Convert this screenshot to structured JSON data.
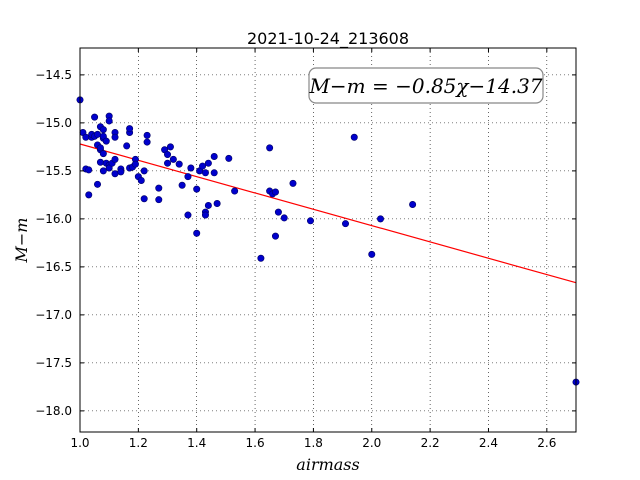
{
  "chart_data": {
    "type": "scatter",
    "title": "2021-10-24_213608",
    "xlabel": "airmass",
    "ylabel": "M−m",
    "xlim": [
      1.0,
      2.7
    ],
    "ylim": [
      -18.22,
      -14.22
    ],
    "x_ticks": [
      1.0,
      1.2,
      1.4,
      1.6,
      1.8,
      2.0,
      2.2,
      2.4,
      2.6
    ],
    "y_ticks": [
      -14.5,
      -15.0,
      -15.5,
      -16.0,
      -16.5,
      -17.0,
      -17.5,
      -18.0
    ],
    "x_tick_labels": [
      "1.0",
      "1.2",
      "1.4",
      "1.6",
      "1.8",
      "2.0",
      "2.2",
      "2.4",
      "2.6"
    ],
    "y_tick_labels": [
      "−14.5",
      "−15.0",
      "−15.5",
      "−16.0",
      "−16.5",
      "−17.0",
      "−17.5",
      "−18.0"
    ],
    "grid": true,
    "annotation": "M−m = −0.85χ−14.37",
    "fit": {
      "slope": -0.85,
      "intercept": -14.37,
      "color": "#ff0000"
    },
    "point_color": "#0000cc",
    "points": [
      [
        1.0,
        -14.76
      ],
      [
        1.01,
        -15.1
      ],
      [
        1.02,
        -15.15
      ],
      [
        1.02,
        -15.48
      ],
      [
        1.03,
        -15.75
      ],
      [
        1.03,
        -15.49
      ],
      [
        1.04,
        -15.15
      ],
      [
        1.04,
        -15.12
      ],
      [
        1.05,
        -14.94
      ],
      [
        1.05,
        -15.14
      ],
      [
        1.06,
        -15.23
      ],
      [
        1.06,
        -15.12
      ],
      [
        1.06,
        -15.64
      ],
      [
        1.07,
        -15.28
      ],
      [
        1.07,
        -15.26
      ],
      [
        1.07,
        -15.04
      ],
      [
        1.07,
        -15.41
      ],
      [
        1.08,
        -15.16
      ],
      [
        1.08,
        -15.14
      ],
      [
        1.08,
        -15.07
      ],
      [
        1.08,
        -15.32
      ],
      [
        1.08,
        -15.5
      ],
      [
        1.09,
        -15.19
      ],
      [
        1.09,
        -15.42
      ],
      [
        1.1,
        -14.93
      ],
      [
        1.1,
        -14.98
      ],
      [
        1.1,
        -15.44
      ],
      [
        1.1,
        -15.47
      ],
      [
        1.11,
        -15.42
      ],
      [
        1.12,
        -15.1
      ],
      [
        1.12,
        -15.15
      ],
      [
        1.12,
        -15.38
      ],
      [
        1.12,
        -15.53
      ],
      [
        1.14,
        -15.48
      ],
      [
        1.14,
        -15.51
      ],
      [
        1.16,
        -15.24
      ],
      [
        1.17,
        -15.1
      ],
      [
        1.17,
        -15.06
      ],
      [
        1.17,
        -15.47
      ],
      [
        1.18,
        -15.46
      ],
      [
        1.19,
        -15.38
      ],
      [
        1.19,
        -15.43
      ],
      [
        1.2,
        -15.56
      ],
      [
        1.21,
        -15.6
      ],
      [
        1.22,
        -15.5
      ],
      [
        1.22,
        -15.79
      ],
      [
        1.23,
        -15.13
      ],
      [
        1.23,
        -15.2
      ],
      [
        1.27,
        -15.68
      ],
      [
        1.27,
        -15.8
      ],
      [
        1.29,
        -15.28
      ],
      [
        1.3,
        -15.42
      ],
      [
        1.3,
        -15.33
      ],
      [
        1.31,
        -15.25
      ],
      [
        1.32,
        -15.38
      ],
      [
        1.34,
        -15.43
      ],
      [
        1.35,
        -15.65
      ],
      [
        1.37,
        -15.56
      ],
      [
        1.37,
        -15.96
      ],
      [
        1.38,
        -15.47
      ],
      [
        1.4,
        -15.69
      ],
      [
        1.4,
        -16.15
      ],
      [
        1.41,
        -15.5
      ],
      [
        1.42,
        -15.45
      ],
      [
        1.43,
        -15.52
      ],
      [
        1.43,
        -15.93
      ],
      [
        1.43,
        -15.96
      ],
      [
        1.44,
        -15.86
      ],
      [
        1.44,
        -15.42
      ],
      [
        1.46,
        -15.35
      ],
      [
        1.46,
        -15.52
      ],
      [
        1.47,
        -15.84
      ],
      [
        1.51,
        -15.37
      ],
      [
        1.53,
        -15.71
      ],
      [
        1.62,
        -16.41
      ],
      [
        1.65,
        -15.26
      ],
      [
        1.65,
        -15.71
      ],
      [
        1.66,
        -15.74
      ],
      [
        1.67,
        -15.72
      ],
      [
        1.67,
        -16.18
      ],
      [
        1.68,
        -15.93
      ],
      [
        1.7,
        -15.99
      ],
      [
        1.73,
        -15.63
      ],
      [
        1.79,
        -16.02
      ],
      [
        1.91,
        -16.05
      ],
      [
        1.94,
        -15.15
      ],
      [
        2.0,
        -16.37
      ],
      [
        2.03,
        -16.0
      ],
      [
        2.14,
        -15.85
      ],
      [
        2.7,
        -17.7
      ]
    ]
  }
}
